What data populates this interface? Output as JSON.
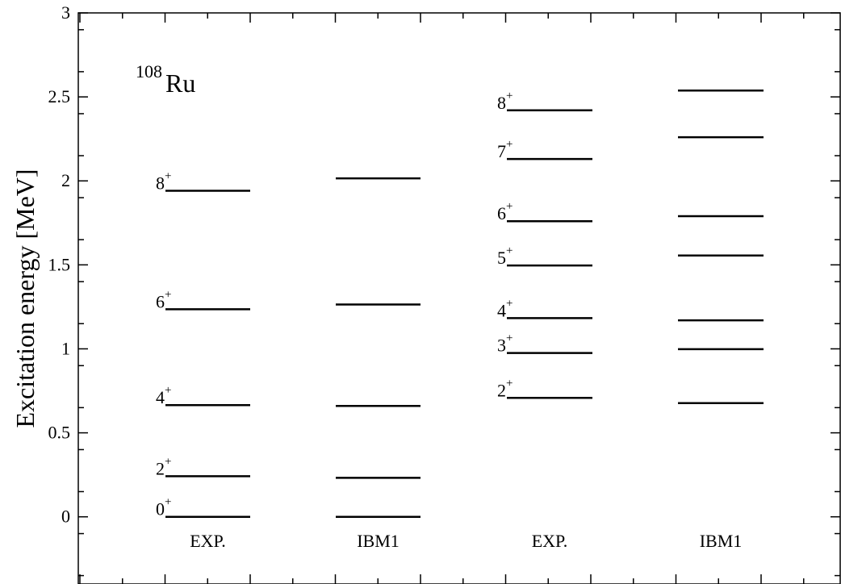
{
  "chart_data": {
    "type": "level-scheme",
    "ylabel": "Excitation energy [MeV]",
    "ylim": [
      -0.4,
      3
    ],
    "yticks": [
      "0",
      "0.5",
      "1",
      "1.5",
      "2",
      "2.5",
      "3"
    ],
    "ytick_values": [
      0,
      0.5,
      1,
      1.5,
      2,
      2.5,
      3
    ],
    "nucleus": {
      "mass": "108",
      "symbol": "Ru"
    },
    "columns": [
      {
        "label": "EXP.",
        "levels": [
          {
            "energy": 0.0,
            "spin": "0",
            "parity": "+"
          },
          {
            "energy": 0.242,
            "spin": "2",
            "parity": "+"
          },
          {
            "energy": 0.665,
            "spin": "4",
            "parity": "+"
          },
          {
            "energy": 1.236,
            "spin": "6",
            "parity": "+"
          },
          {
            "energy": 1.941,
            "spin": "8",
            "parity": "+"
          }
        ]
      },
      {
        "label": "IBM1",
        "levels": [
          {
            "energy": 0.0
          },
          {
            "energy": 0.232
          },
          {
            "energy": 0.66
          },
          {
            "energy": 1.264
          },
          {
            "energy": 2.015
          }
        ]
      },
      {
        "label": "EXP.",
        "levels": [
          {
            "energy": 0.708,
            "spin": "2",
            "parity": "+"
          },
          {
            "energy": 0.975,
            "spin": "3",
            "parity": "+"
          },
          {
            "energy": 1.183,
            "spin": "4",
            "parity": "+"
          },
          {
            "energy": 1.496,
            "spin": "5",
            "parity": "+"
          },
          {
            "energy": 1.76,
            "spin": "6",
            "parity": "+"
          },
          {
            "energy": 2.13,
            "spin": "7",
            "parity": "+"
          },
          {
            "energy": 2.42,
            "spin": "8",
            "parity": "+"
          }
        ]
      },
      {
        "label": "IBM1",
        "levels": [
          {
            "energy": 0.677
          },
          {
            "energy": 0.998
          },
          {
            "energy": 1.17
          },
          {
            "energy": 1.556
          },
          {
            "energy": 1.79
          },
          {
            "energy": 2.26
          },
          {
            "energy": 2.538
          }
        ]
      }
    ]
  }
}
